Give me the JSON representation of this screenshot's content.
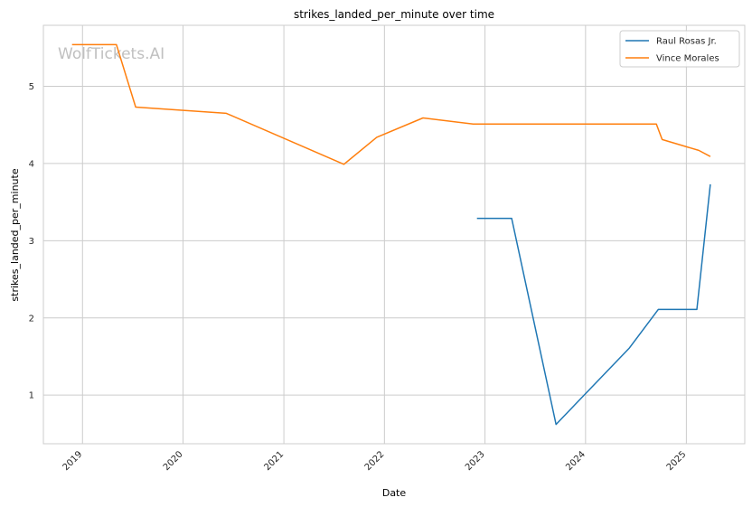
{
  "chart_data": {
    "type": "line",
    "title": "strikes_landed_per_minute over time",
    "xlabel": "Date",
    "ylabel": "strikes_landed_per_minute",
    "watermark": "WolfTickets.AI",
    "x_ticks": [
      "2019",
      "2020",
      "2021",
      "2022",
      "2023",
      "2024",
      "2025"
    ],
    "y_ticks": [
      1,
      2,
      3,
      4,
      5
    ],
    "xlim": [
      "2018-08-12",
      "2025-08-01"
    ],
    "ylim": [
      0.37,
      5.79
    ],
    "grid": true,
    "legend_position": "top-right",
    "series": [
      {
        "name": "Raul Rosas Jr.",
        "color": "#1f77b4",
        "points": [
          {
            "date": "2022-12-03",
            "value": 3.29
          },
          {
            "date": "2023-04-08",
            "value": 3.29
          },
          {
            "date": "2023-09-16",
            "value": 0.62
          },
          {
            "date": "2024-06-08",
            "value": 1.61
          },
          {
            "date": "2024-09-21",
            "value": 2.11
          },
          {
            "date": "2025-02-08",
            "value": 2.11
          },
          {
            "date": "2025-03-29",
            "value": 3.73
          }
        ]
      },
      {
        "name": "Vince Morales",
        "color": "#ff7f0e",
        "points": [
          {
            "date": "2018-11-24",
            "value": 5.54
          },
          {
            "date": "2019-05-04",
            "value": 5.54
          },
          {
            "date": "2019-07-13",
            "value": 4.73
          },
          {
            "date": "2020-06-06",
            "value": 4.65
          },
          {
            "date": "2021-08-07",
            "value": 3.99
          },
          {
            "date": "2021-12-04",
            "value": 4.34
          },
          {
            "date": "2022-05-21",
            "value": 4.59
          },
          {
            "date": "2022-11-19",
            "value": 4.51
          },
          {
            "date": "2024-09-14",
            "value": 4.51
          },
          {
            "date": "2024-10-05",
            "value": 4.31
          },
          {
            "date": "2025-02-15",
            "value": 4.17
          },
          {
            "date": "2025-03-29",
            "value": 4.09
          }
        ]
      }
    ]
  }
}
